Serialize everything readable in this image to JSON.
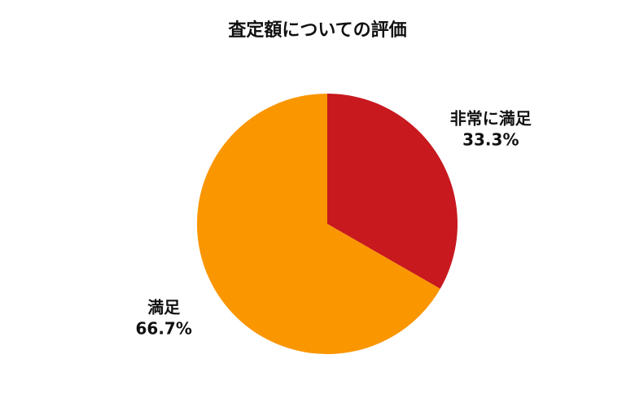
{
  "chart_data": {
    "type": "pie",
    "title": "査定額についての評価",
    "categories": [
      "非常に満足",
      "満足"
    ],
    "values": [
      33.3,
      66.7
    ],
    "value_labels": [
      "33.3%",
      "66.7%"
    ],
    "colors": [
      "#c8191e",
      "#fa9600"
    ]
  }
}
